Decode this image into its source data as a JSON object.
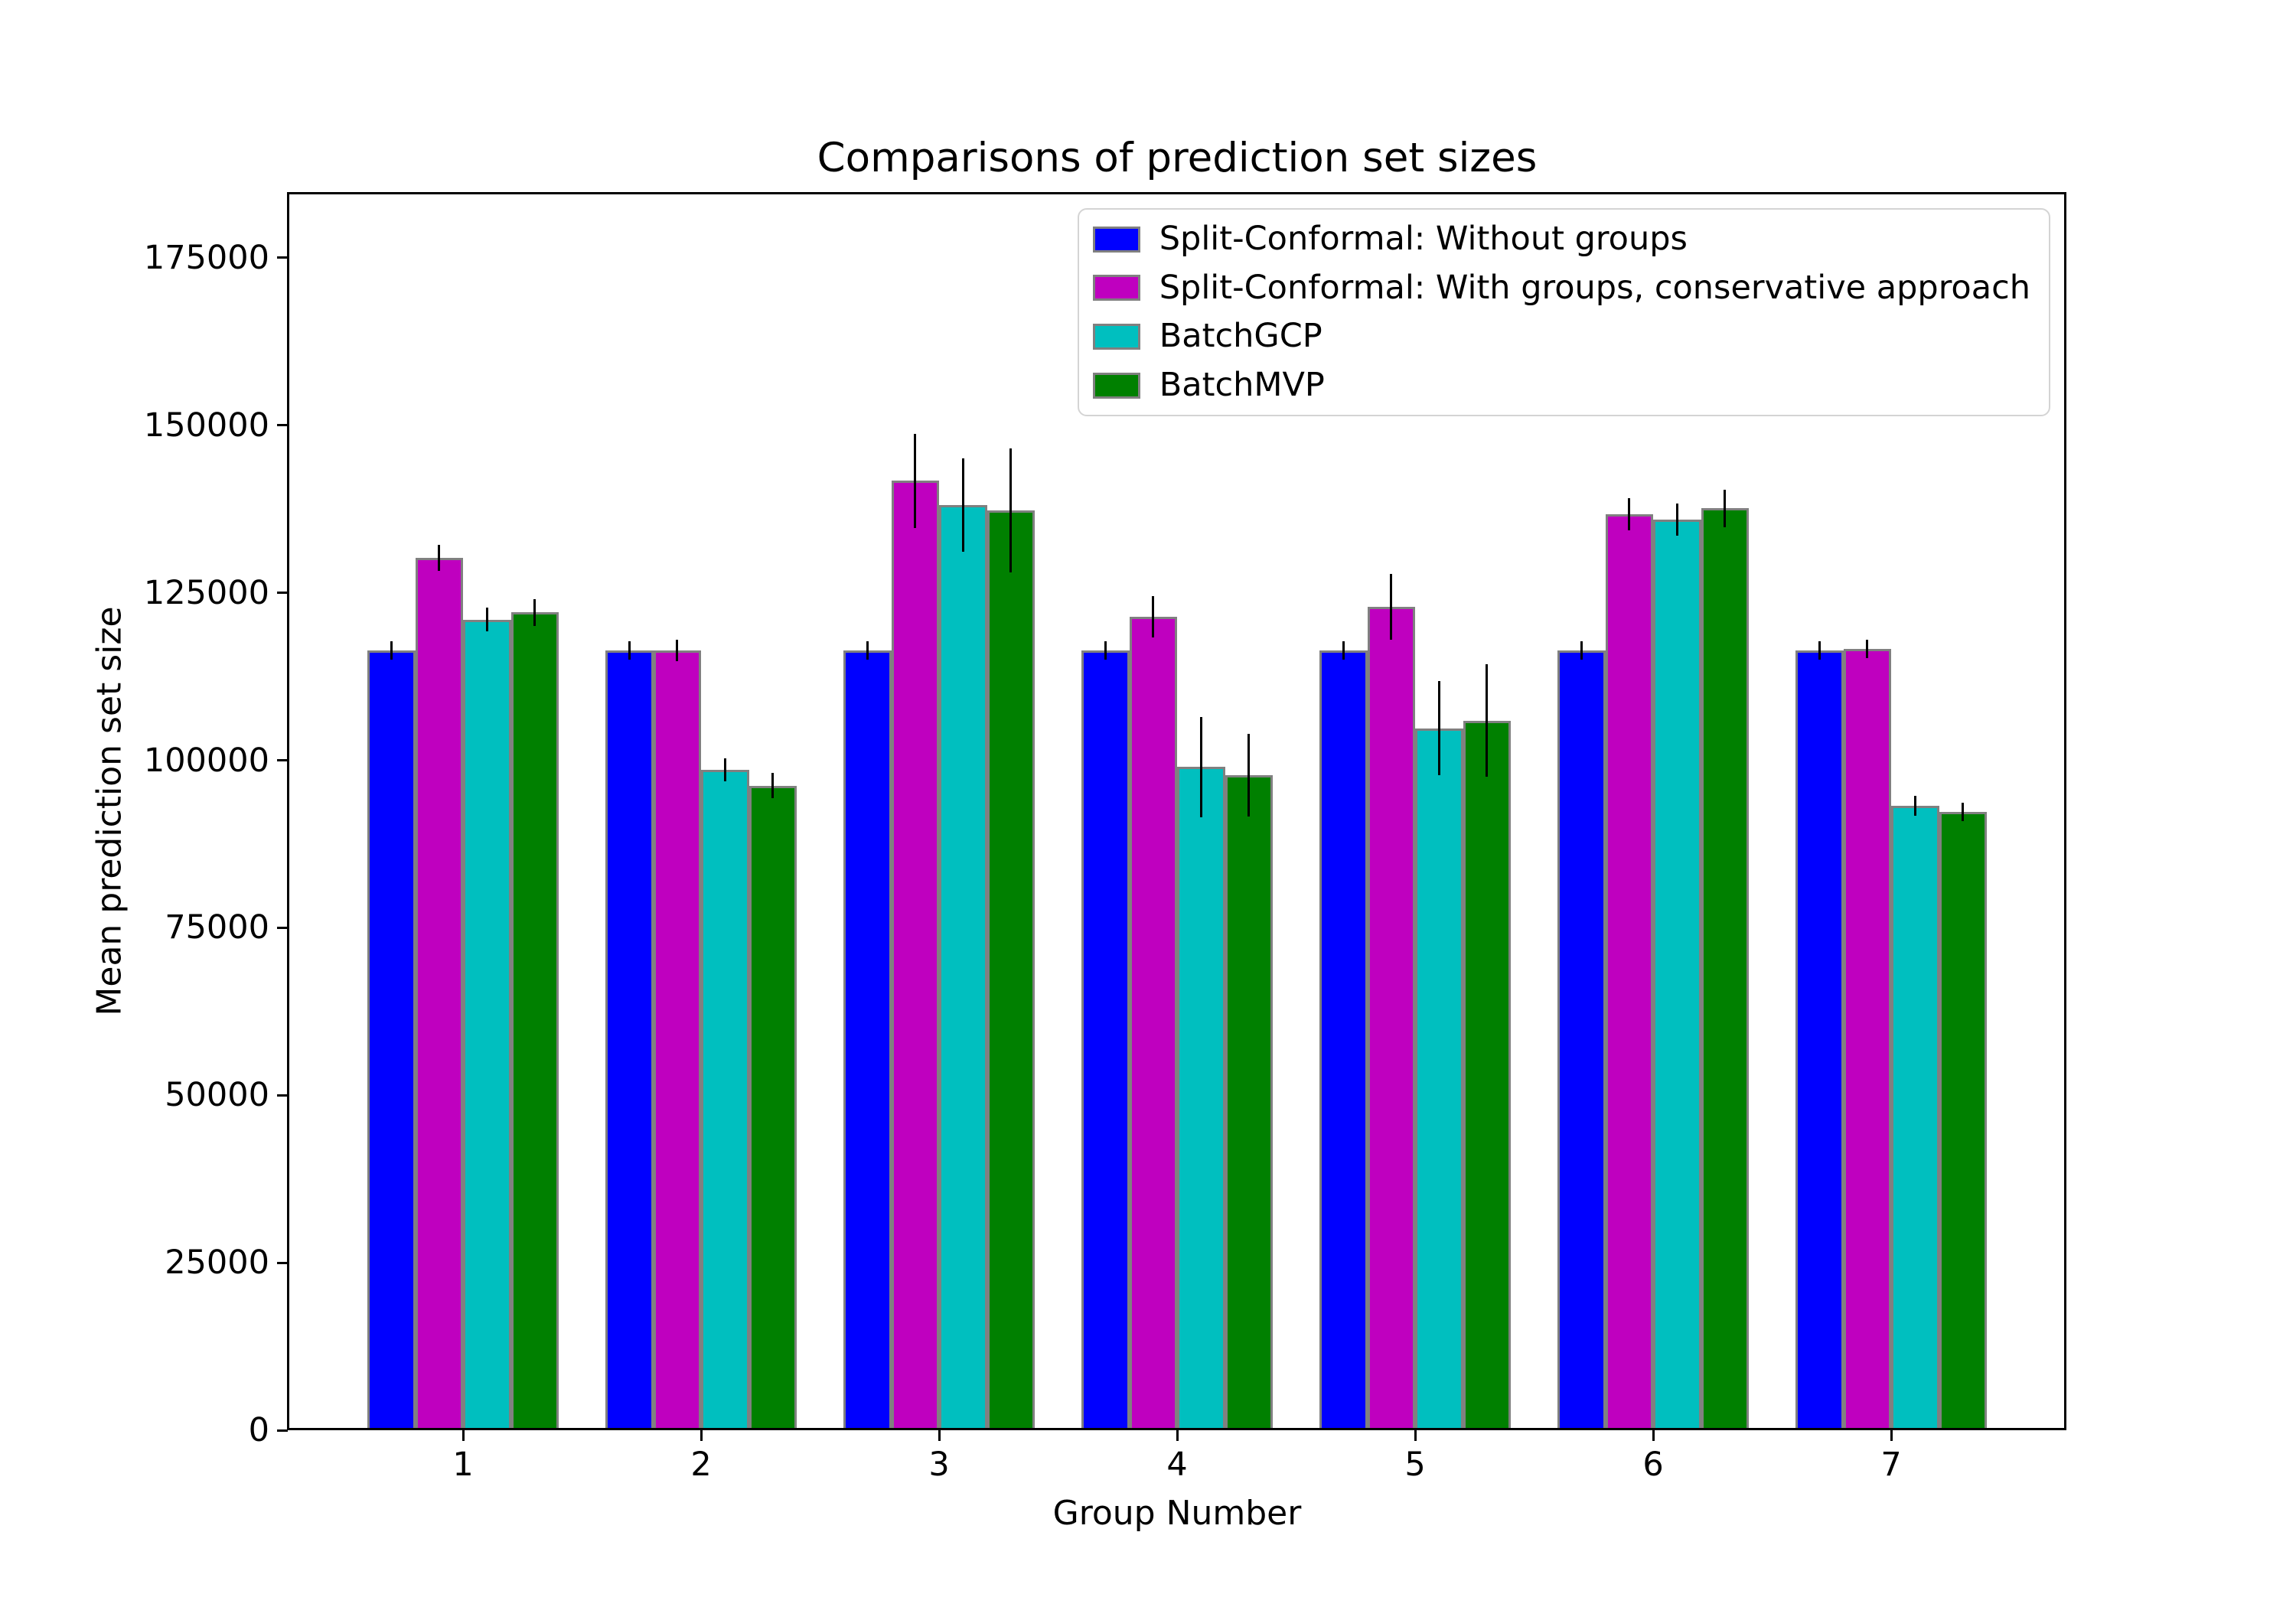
{
  "figure": {
    "background_color": "#ffffff",
    "text_color": "#000000"
  },
  "chart_data": {
    "type": "bar",
    "title": "Comparisons of prediction set sizes",
    "xlabel": "Group Number",
    "ylabel": "Mean prediction set size",
    "categories": [
      "1",
      "2",
      "3",
      "4",
      "5",
      "6",
      "7"
    ],
    "ylim": [
      0,
      184700
    ],
    "yticks": [
      0,
      25000,
      50000,
      75000,
      100000,
      125000,
      150000,
      175000
    ],
    "grid": false,
    "legend_position": "upper right",
    "bar_edge_color": "#808080",
    "error_bar_color": "#000000",
    "axis_color": "#000000",
    "series": [
      {
        "name": "Split-Conformal: Without groups",
        "color": "#0000ff",
        "values": [
          116400,
          116400,
          116400,
          116400,
          116400,
          116400,
          116400
        ],
        "errors": [
          1400,
          1400,
          1400,
          1400,
          1400,
          1400,
          1400
        ]
      },
      {
        "name": "Split-Conformal: With groups, conservative approach",
        "color": "#bf00bf",
        "values": [
          130200,
          116400,
          141700,
          121400,
          122900,
          136700,
          116600
        ],
        "errors": [
          1900,
          1600,
          7000,
          3100,
          4900,
          2400,
          1400
        ]
      },
      {
        "name": "BatchGCP",
        "color": "#00bfbf",
        "values": [
          121000,
          98600,
          138100,
          99000,
          104800,
          135900,
          93200
        ],
        "errors": [
          1800,
          1700,
          7000,
          7500,
          7000,
          2400,
          1500
        ]
      },
      {
        "name": "BatchMVP",
        "color": "#008000",
        "values": [
          122100,
          96200,
          137300,
          97800,
          105900,
          137600,
          92300
        ],
        "errors": [
          2000,
          1900,
          9200,
          6200,
          8400,
          2800,
          1400
        ]
      }
    ]
  }
}
